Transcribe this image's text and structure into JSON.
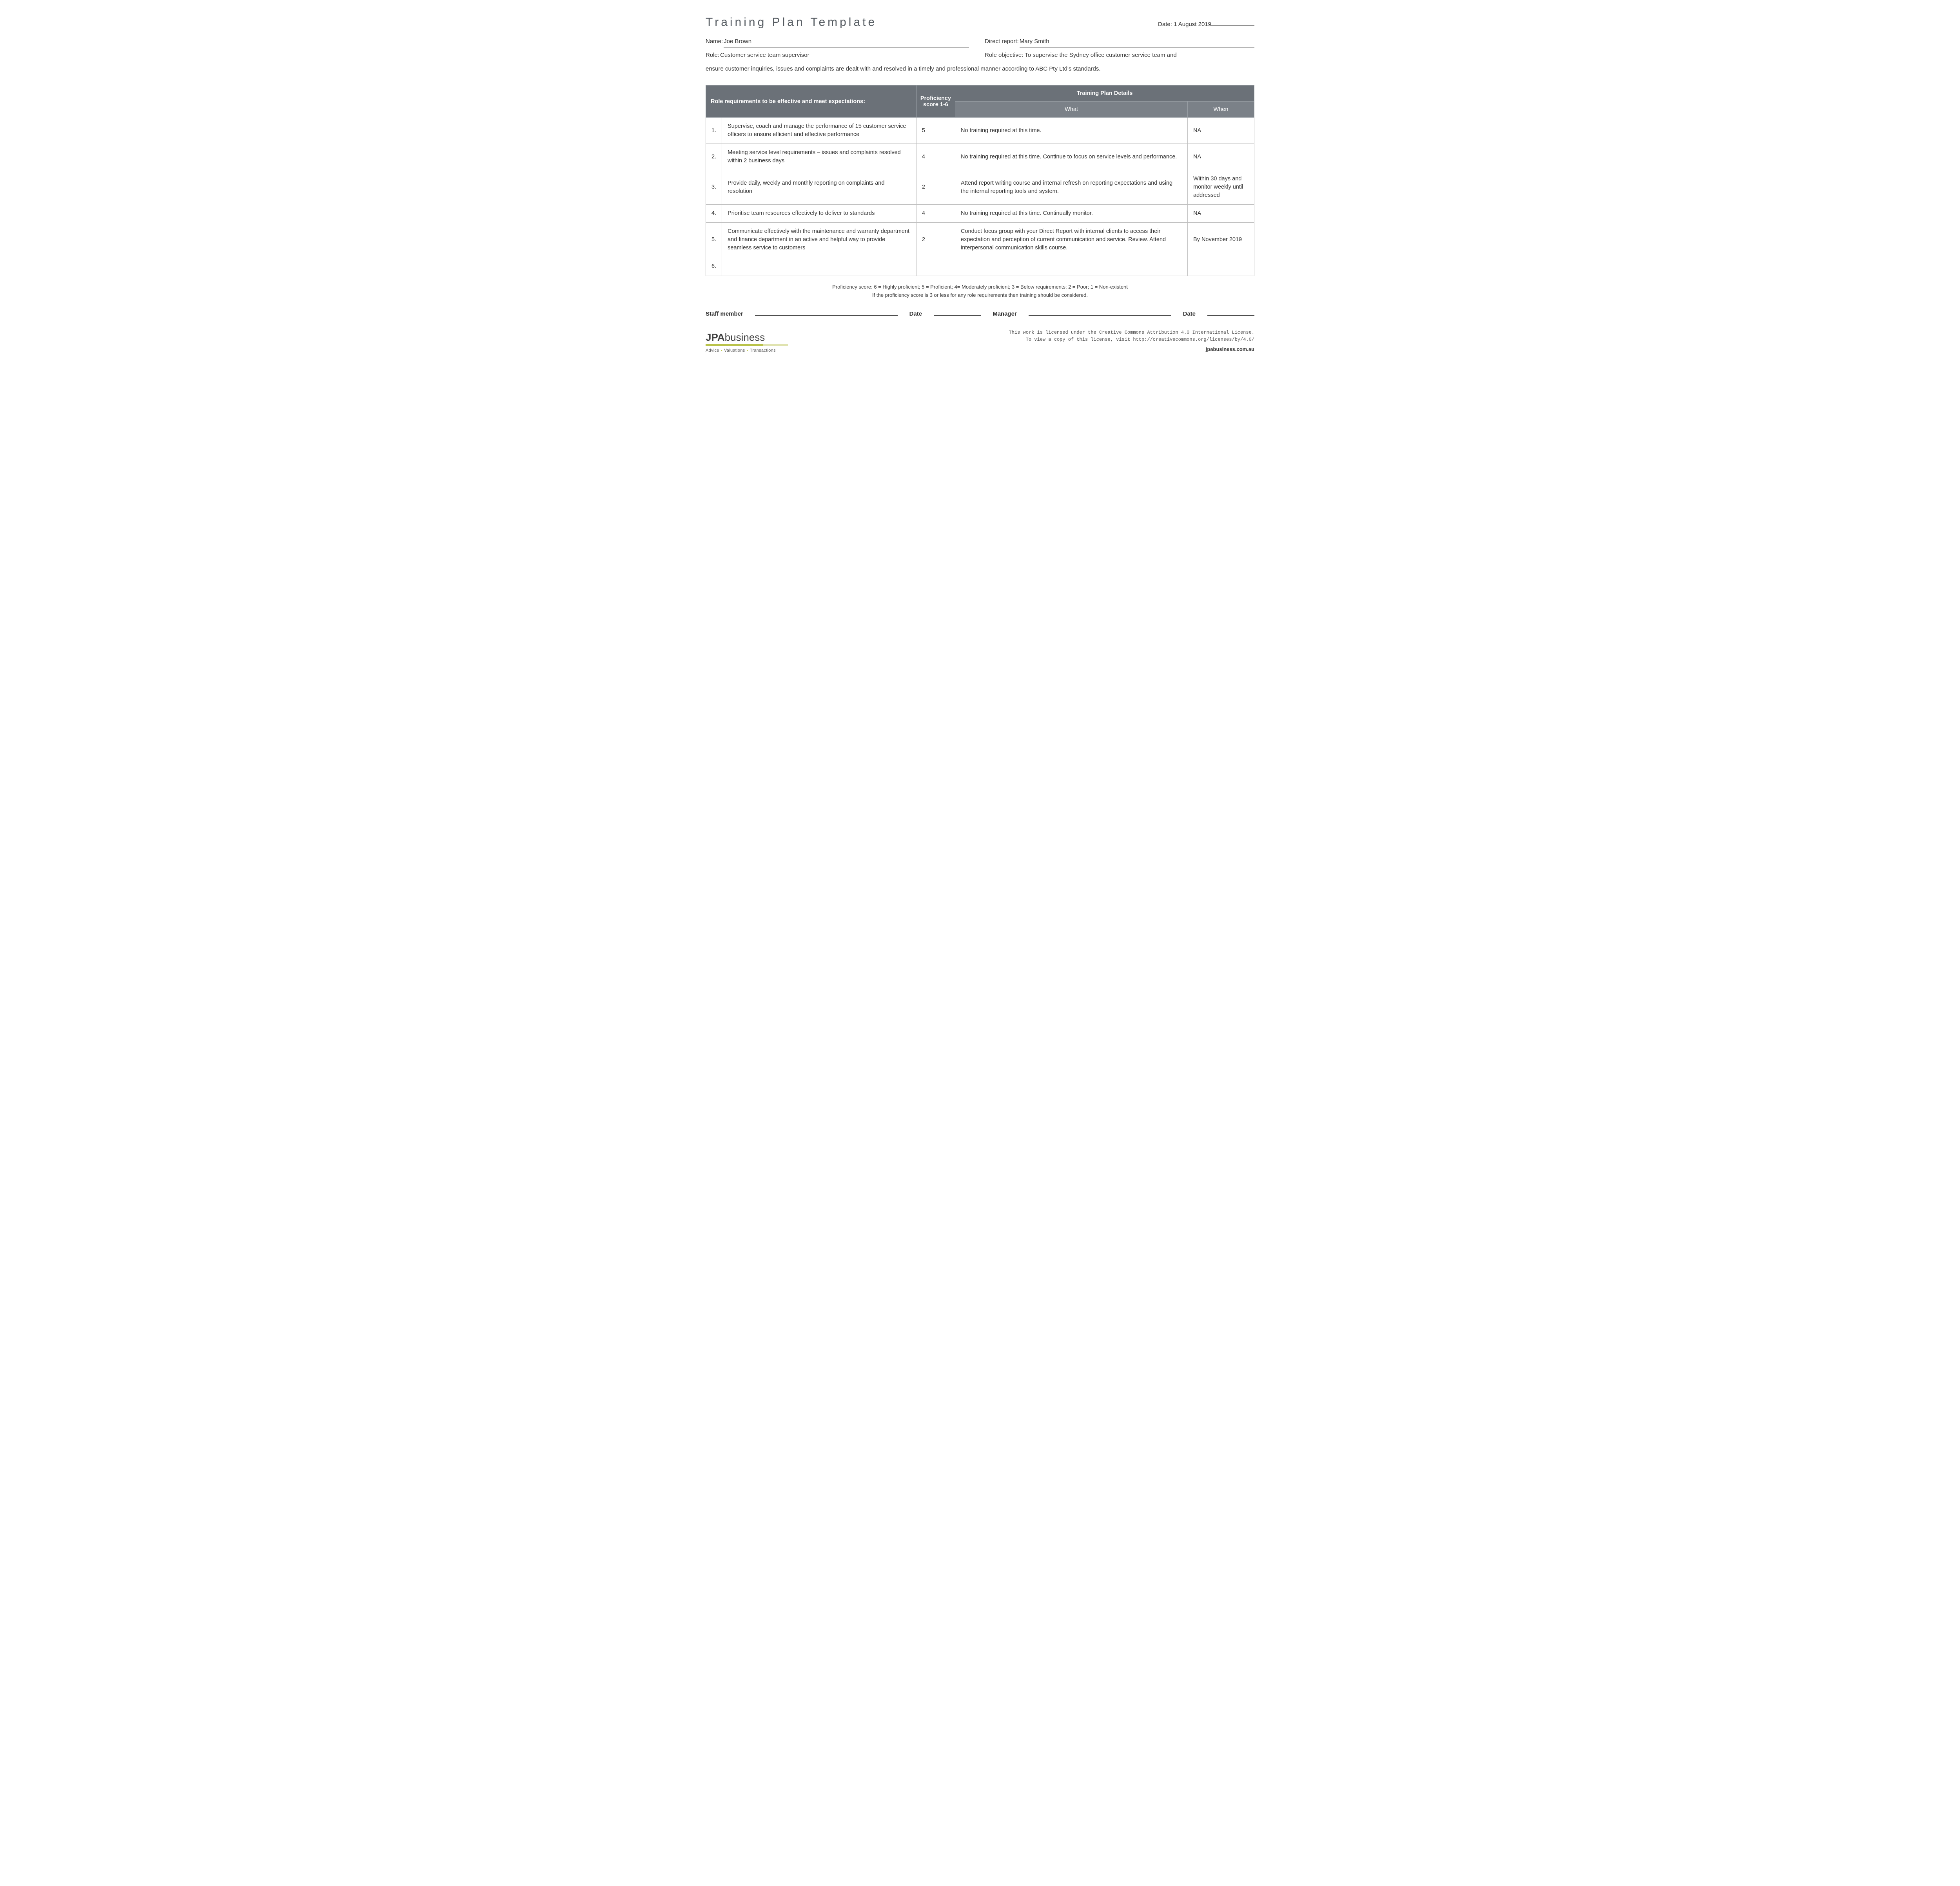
{
  "title": "Training Plan Template",
  "date_label": "Date: ",
  "date_value": "1 August 2019",
  "fields": {
    "name_label": "Name: ",
    "name_value": "Joe Brown",
    "direct_report_label": "Direct report: ",
    "direct_report_value": "Mary Smith",
    "role_label": "Role: ",
    "role_value": "Customer service team supervisor",
    "objective_label": "Role objective: ",
    "objective_value_line1": "To supervise the Sydney office customer service team and",
    "objective_value_line2": "ensure customer inquiries, issues and complaints are dealt with and resolved in a timely and professional manner according to ABC Pty Ltd's standards."
  },
  "table": {
    "colors": {
      "header_bg": "#6b7178",
      "subheader_bg": "#7b8188",
      "header_text": "#ffffff",
      "border": "#bfbfbf",
      "text": "#333333"
    },
    "headers": {
      "requirements": "Role requirements to be effective and meet expectations:",
      "score": "Proficiency score 1-6",
      "details": "Training Plan Details",
      "what": "What",
      "when": "When"
    },
    "rows": [
      {
        "num": "1.",
        "req": "Supervise, coach and manage the performance of 15 customer service officers to ensure efficient and effective performance",
        "score": "5",
        "what": "No training required at this time.",
        "when": "NA"
      },
      {
        "num": "2.",
        "req": "Meeting service level requirements – issues and complaints resolved within 2 business days",
        "score": "4",
        "what": "No training required at this time. Continue to focus on service levels and performance.",
        "when": "NA"
      },
      {
        "num": "3.",
        "req": "Provide daily, weekly and monthly reporting on complaints and resolution",
        "score": "2",
        "what": "Attend report writing course and internal refresh on reporting expectations and using the internal reporting tools and system.",
        "when": "Within 30 days and monitor weekly until addressed"
      },
      {
        "num": "4.",
        "req": "Prioritise team resources effectively to deliver to standards",
        "score": "4",
        "what": "No training required at this time. Continually monitor.",
        "when": "NA"
      },
      {
        "num": "5.",
        "req": "Communicate effectively with the maintenance and warranty department and finance department in an active and helpful way to provide seamless service to customers",
        "score": "2",
        "what": "Conduct focus group with your Direct Report with internal clients to access their expectation and perception of current communication and service. Review. Attend interpersonal communication skills course.",
        "when": "By November 2019"
      },
      {
        "num": "6.",
        "req": "",
        "score": "",
        "what": "",
        "when": ""
      }
    ]
  },
  "legend": {
    "line1": "Proficiency score: 6 = Highly proficient; 5 = Proficient; 4= Moderately proficient; 3 = Below requirements; 2 = Poor; 1 = Non-existent",
    "line2": "If the proficiency score is 3 or less for any role requirements then training should be considered."
  },
  "signatures": {
    "staff_label": "Staff member",
    "date_label": "Date",
    "manager_label": "Manager"
  },
  "footer": {
    "logo_jpa": "JPA",
    "logo_business": "business",
    "tagline_1": "Advice",
    "tagline_2": "Valuations",
    "tagline_3": "Transactions",
    "license_line1": "This work is licensed under the Creative Commons Attribution 4.0 International License.",
    "license_line2": "To view a copy of this license, visit http://creativecommons.org/licenses/by/4.0/",
    "website": "jpabusiness.com.au"
  }
}
